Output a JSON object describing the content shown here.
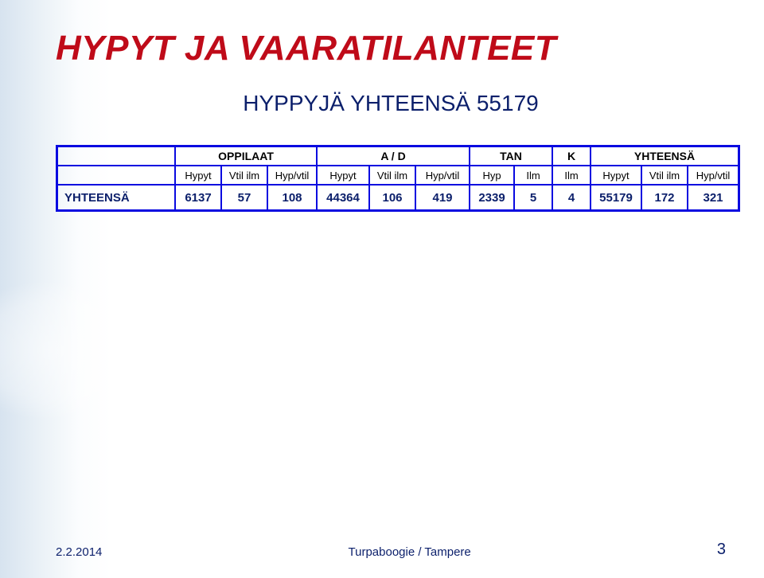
{
  "title": "HYPYT JA VAARATILANTEET",
  "subtitle": "HYPPYJÄ YHTEENSÄ 55179",
  "table": {
    "border_color": "#0a0ae0",
    "group_headers": {
      "blank": "",
      "g1": "OPPILAAT",
      "g2": "A / D",
      "g3": "TAN",
      "g4": "K",
      "g5": "YHTEENSÄ"
    },
    "sub_headers": [
      "",
      "Hypyt",
      "Vtil ilm",
      "Hyp/vtil",
      "Hypyt",
      "Vtil ilm",
      "Hyp/vtil",
      "Hyp",
      "Ilm",
      "Ilm",
      "Hypyt",
      "Vtil ilm",
      "Hyp/vtil"
    ],
    "total_row": [
      "YHTEENSÄ",
      "6137",
      "57",
      "108",
      "44364",
      "106",
      "419",
      "2339",
      "5",
      "4",
      "55179",
      "172",
      "321"
    ]
  },
  "footer": {
    "date": "2.2.2014",
    "center": "Turpaboogie / Tampere",
    "page": "3"
  },
  "colors": {
    "title": "#bf0b19",
    "accent": "#0b1f6b",
    "border": "#0a0ae0",
    "bg": "#ffffff"
  }
}
